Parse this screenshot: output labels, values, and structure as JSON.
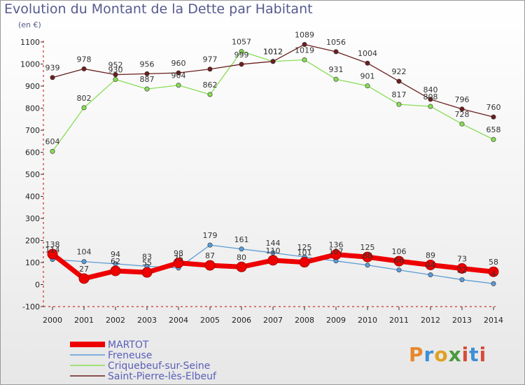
{
  "title": "Evolution du Montant de la Dette par Habitant",
  "unit_label": "(en €)",
  "logo_text": "Proxiti",
  "chart_data": {
    "type": "line",
    "title": "Evolution du Montant de la Dette par Habitant",
    "ylabel": "(en €)",
    "xlabel": "",
    "x": [
      2000,
      2001,
      2002,
      2003,
      2004,
      2005,
      2006,
      2007,
      2008,
      2009,
      2010,
      2011,
      2012,
      2013,
      2014
    ],
    "ylim": [
      -100,
      1100
    ],
    "yticks": [
      -100,
      0,
      100,
      200,
      300,
      400,
      500,
      600,
      700,
      800,
      900,
      1000,
      1100
    ],
    "grid": false,
    "legend": "bottom-left",
    "series": [
      {
        "name": "MARTOT",
        "color": "#ee0000",
        "values": [
          138,
          27,
          62,
          55,
          98,
          87,
          80,
          110,
          101,
          136,
          125,
          106,
          89,
          73,
          58
        ]
      },
      {
        "name": "Freneuse",
        "color": "#5b9bd5",
        "values": [
          114,
          104,
          94,
          83,
          75,
          179,
          161,
          144,
          125,
          107,
          88,
          66,
          44,
          22,
          4
        ]
      },
      {
        "name": "Criquebeuf-sur-Seine",
        "color": "#88dd55",
        "values": [
          604,
          802,
          930,
          887,
          904,
          862,
          1057,
          1012,
          1019,
          931,
          901,
          817,
          808,
          728,
          658
        ]
      },
      {
        "name": "Saint-Pierre-lès-Elbeuf",
        "color": "#6b1f1f",
        "values": [
          939,
          978,
          952,
          956,
          960,
          977,
          999,
          1012,
          1089,
          1056,
          1004,
          922,
          840,
          796,
          760
        ]
      }
    ]
  }
}
